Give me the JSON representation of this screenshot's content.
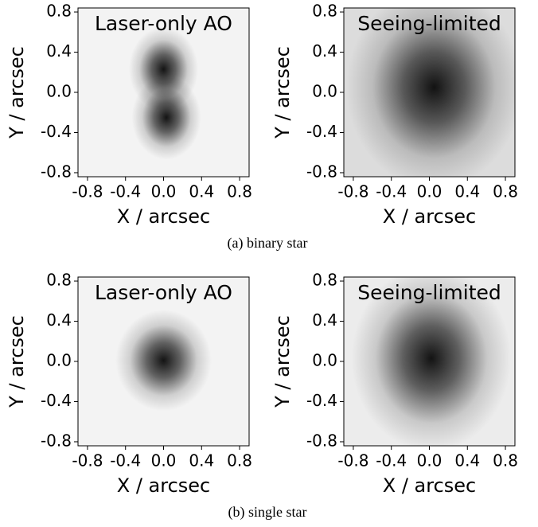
{
  "chart_data": [
    {
      "type": "heatmap",
      "title": "Laser-only AO",
      "xlabel": "X / arcsec",
      "ylabel": "Y / arcsec",
      "background": "#f3f3f3",
      "xlim": [
        -0.9,
        0.9
      ],
      "ylim": [
        -0.84,
        0.84
      ],
      "xticks": [
        -0.8,
        -0.4,
        {
          "value": 0,
          "label": "0.0"
        },
        0.4,
        0.8
      ],
      "yticks": [
        -0.8,
        -0.4,
        {
          "value": 0,
          "label": "0.0"
        },
        0.4,
        0.8
      ],
      "sources": [
        {
          "x": 0.0,
          "y": 0.23,
          "sigma_x": 0.13,
          "sigma_y": 0.15
        },
        {
          "x": 0.03,
          "y": -0.25,
          "sigma_x": 0.13,
          "sigma_y": 0.15
        }
      ]
    },
    {
      "type": "heatmap",
      "title": "Seeing-limited",
      "xlabel": "X / arcsec",
      "ylabel": "Y / arcsec",
      "background": "#dcdcdc",
      "xlim": [
        -0.9,
        0.9
      ],
      "ylim": [
        -0.84,
        0.84
      ],
      "xticks": [
        -0.8,
        -0.4,
        {
          "value": 0,
          "label": "0.0"
        },
        0.4,
        0.8
      ],
      "yticks": [
        -0.8,
        -0.4,
        {
          "value": 0,
          "label": "0.0"
        },
        0.4,
        0.8
      ],
      "sources": [
        {
          "x": 0.05,
          "y": 0.05,
          "sigma_x": 0.33,
          "sigma_y": 0.36
        }
      ]
    },
    {
      "type": "heatmap",
      "title": "Laser-only AO",
      "xlabel": "X / arcsec",
      "ylabel": "Y / arcsec",
      "background": "#f3f3f3",
      "xlim": [
        -0.9,
        0.9
      ],
      "ylim": [
        -0.84,
        0.84
      ],
      "xticks": [
        -0.8,
        -0.4,
        {
          "value": 0,
          "label": "0.0"
        },
        0.4,
        0.8
      ],
      "yticks": [
        -0.8,
        -0.4,
        {
          "value": 0,
          "label": "0.0"
        },
        0.4,
        0.8
      ],
      "sources": [
        {
          "x": 0.0,
          "y": 0.01,
          "sigma_x": 0.18,
          "sigma_y": 0.18
        }
      ]
    },
    {
      "type": "heatmap",
      "title": "Seeing-limited",
      "xlabel": "X / arcsec",
      "ylabel": "Y / arcsec",
      "background": "#ececec",
      "xlim": [
        -0.9,
        0.9
      ],
      "ylim": [
        -0.84,
        0.84
      ],
      "xticks": [
        -0.8,
        -0.4,
        {
          "value": 0,
          "label": "0.0"
        },
        0.4,
        0.8
      ],
      "yticks": [
        -0.8,
        -0.4,
        {
          "value": 0,
          "label": "0.0"
        },
        0.4,
        0.8
      ],
      "sources": [
        {
          "x": 0.02,
          "y": 0.03,
          "sigma_x": 0.3,
          "sigma_y": 0.33
        }
      ]
    }
  ],
  "captions": [
    "(a) binary star",
    "(b) single star"
  ]
}
